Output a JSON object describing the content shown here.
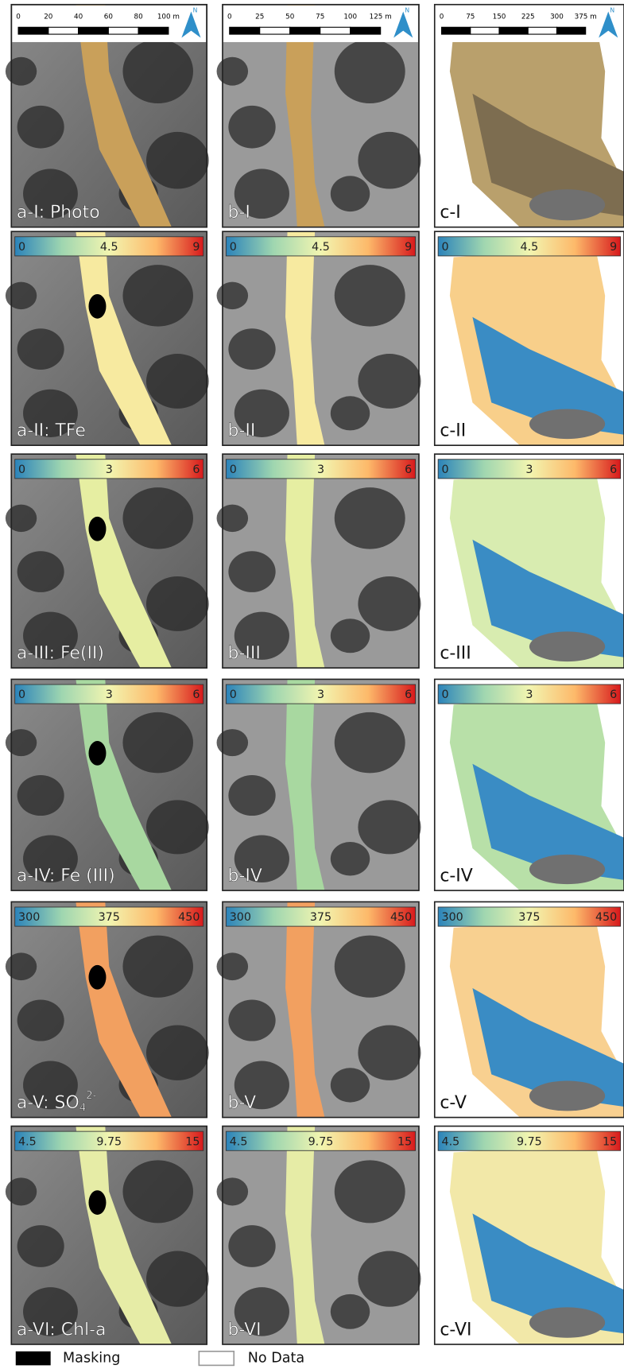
{
  "columns": [
    {
      "scale_bar": [
        "0",
        "20",
        "40",
        "60",
        "80",
        "100 m"
      ]
    },
    {
      "scale_bar": [
        "0",
        "25",
        "50",
        "75",
        "100",
        "125 m"
      ]
    },
    {
      "scale_bar": [
        "0",
        "75",
        "150",
        "225",
        "300",
        "375 m"
      ]
    }
  ],
  "north": "N",
  "rows": [
    {
      "labels": [
        "a-I: Photo",
        "b-I",
        "c-I"
      ]
    },
    {
      "colorbar": [
        "0",
        "4.5",
        "9"
      ],
      "labels": [
        "a-II: TFe",
        "b-II",
        "c-II"
      ]
    },
    {
      "colorbar": [
        "0",
        "3",
        "6"
      ],
      "labels": [
        "a-III: Fe(II)",
        "b-III",
        "c-III"
      ]
    },
    {
      "colorbar": [
        "0",
        "3",
        "6"
      ],
      "labels": [
        "a-IV: Fe (III)",
        "b-IV",
        "c-IV"
      ]
    },
    {
      "colorbar": [
        "300",
        "375",
        "450"
      ],
      "labels": [
        [
          "a-V: SO",
          "4",
          "2-"
        ],
        "b-V",
        "c-V"
      ]
    },
    {
      "colorbar": [
        "4.5",
        "9.75",
        "15"
      ],
      "labels": [
        "a-VI: Chl-a",
        "b-VI",
        "c-VI"
      ]
    }
  ],
  "legend": [
    "Masking",
    "No Data"
  ]
}
